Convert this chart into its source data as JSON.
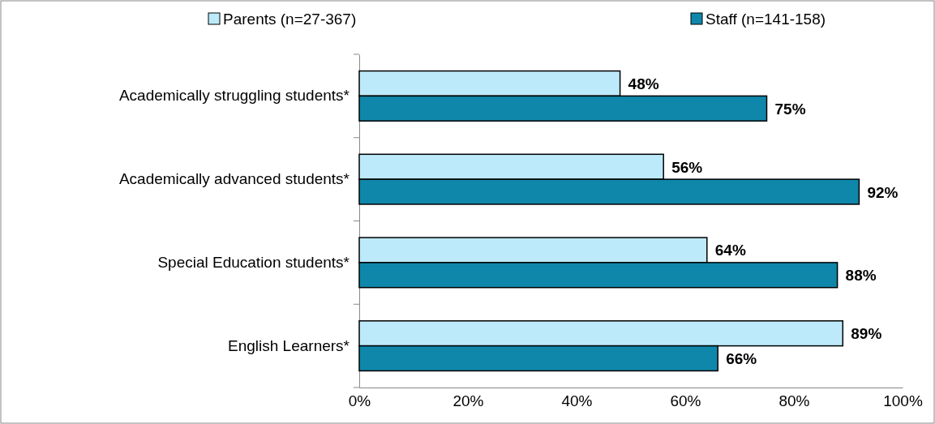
{
  "chart_data": {
    "type": "bar",
    "orientation": "horizontal",
    "categories": [
      "Academically struggling students*",
      "Academically advanced students*",
      "Special Education students*",
      "English Learners*"
    ],
    "series": [
      {
        "name": "Parents (n=27-367)",
        "color": "#bdeafa",
        "values": [
          48,
          56,
          64,
          89
        ],
        "value_labels": [
          "48%",
          "56%",
          "64%",
          "89%"
        ]
      },
      {
        "name": "Staff (n=141-158)",
        "color": "#0e87aa",
        "values": [
          75,
          92,
          88,
          66
        ],
        "value_labels": [
          "75%",
          "92%",
          "88%",
          "66%"
        ]
      }
    ],
    "xlim": [
      0,
      100
    ],
    "xticks": [
      {
        "value": 0,
        "label": "0%"
      },
      {
        "value": 20,
        "label": "20%"
      },
      {
        "value": 40,
        "label": "40%"
      },
      {
        "value": 60,
        "label": "60%"
      },
      {
        "value": 80,
        "label": "80%"
      },
      {
        "value": 100,
        "label": "100%"
      }
    ],
    "grid": false,
    "legend": "top"
  }
}
